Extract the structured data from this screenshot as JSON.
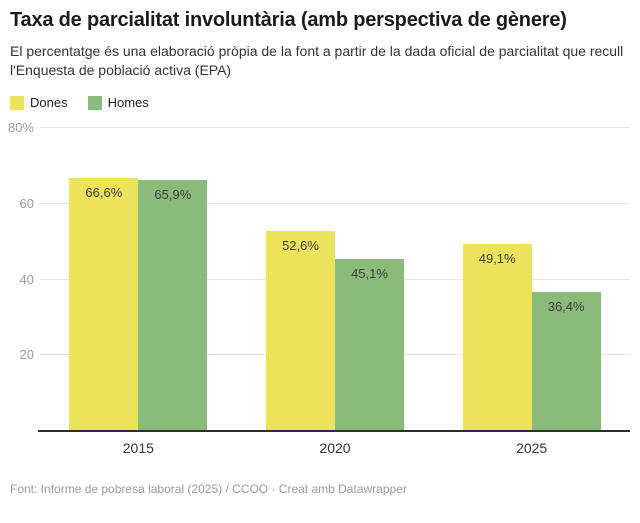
{
  "header": {
    "title": "Taxa de parcialitat involuntària (amb perspectiva de gènere)",
    "subtitle": "El percentatge és una elaboració pròpia de la font a partir de la dada oficial de parcialitat que recull l'Enquesta de població activa (EPA)"
  },
  "legend": {
    "items": [
      {
        "label": "Dones",
        "color": "#ede25c"
      },
      {
        "label": "Homes",
        "color": "#8bbb7b"
      }
    ]
  },
  "chart_data": {
    "type": "bar",
    "title": "Taxa de parcialitat involuntària (amb perspectiva de gènere)",
    "categories": [
      "2015",
      "2020",
      "2025"
    ],
    "series": [
      {
        "name": "Dones",
        "color": "#ede25c",
        "values": [
          66.6,
          52.6,
          49.1
        ],
        "labels": [
          "66,6%",
          "52,6%",
          "49,1%"
        ]
      },
      {
        "name": "Homes",
        "color": "#8bbb7b",
        "values": [
          65.9,
          45.1,
          36.4
        ],
        "labels": [
          "65,9%",
          "45,1%",
          "36,4%"
        ]
      }
    ],
    "xlabel": "",
    "ylabel": "",
    "ylim": [
      0,
      80
    ],
    "yticks": [
      {
        "value": 20,
        "label": "20"
      },
      {
        "value": 40,
        "label": "40"
      },
      {
        "value": 60,
        "label": "60"
      },
      {
        "value": 80,
        "label": "80%"
      }
    ],
    "grid": true,
    "legend_position": "top",
    "colors": {
      "gridline": "#e4e4e4",
      "baseline": "#2e2e2e",
      "tick_text": "#9b9b9b",
      "value_text": "#3d3d3d"
    }
  },
  "footer": {
    "text": "Font: Informe de pobresa laboral (2025) / CCOO · Creat amb Datawrapper"
  }
}
